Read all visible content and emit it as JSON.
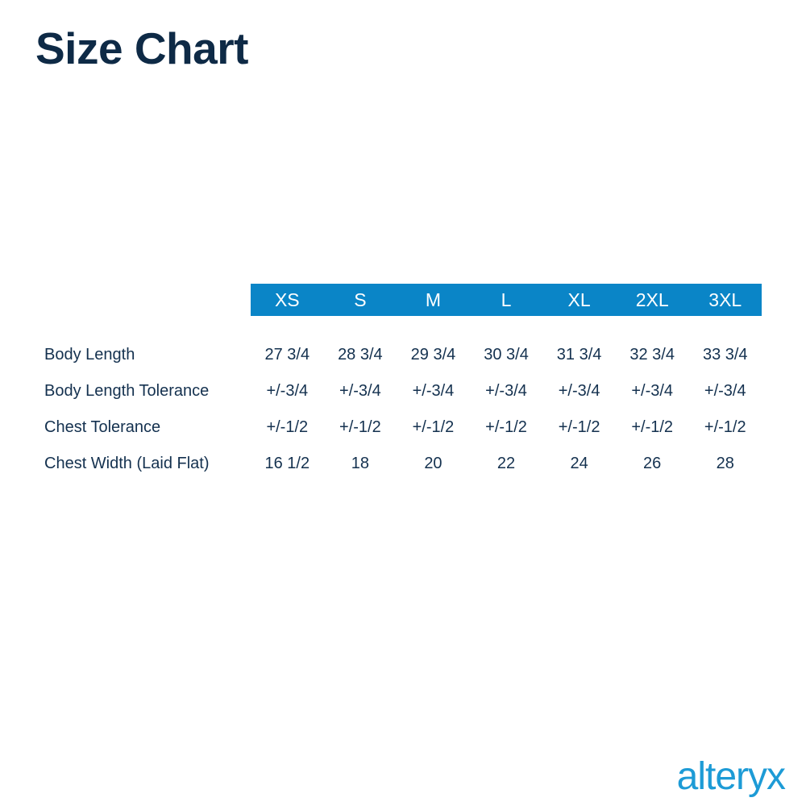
{
  "title": "Size Chart",
  "colors": {
    "title_color": "#0e2a46",
    "text_color": "#14314f",
    "header_bg": "#0a85c7",
    "header_text": "#ffffff",
    "logo_color": "#1d9bd6"
  },
  "footer": {
    "logo_text": "alteryx"
  },
  "chart_data": {
    "type": "table",
    "title": "Size Chart",
    "columns": [
      "XS",
      "S",
      "M",
      "L",
      "XL",
      "2XL",
      "3XL"
    ],
    "rows": [
      {
        "label": "Body Length",
        "values": [
          "27 3/4",
          "28 3/4",
          "29 3/4",
          "30 3/4",
          "31 3/4",
          "32 3/4",
          "33 3/4"
        ]
      },
      {
        "label": "Body Length Tolerance",
        "values": [
          "+/-3/4",
          "+/-3/4",
          "+/-3/4",
          "+/-3/4",
          "+/-3/4",
          "+/-3/4",
          "+/-3/4"
        ]
      },
      {
        "label": "Chest Tolerance",
        "values": [
          "+/-1/2",
          "+/-1/2",
          "+/-1/2",
          "+/-1/2",
          "+/-1/2",
          "+/-1/2",
          "+/-1/2"
        ]
      },
      {
        "label": "Chest Width (Laid Flat)",
        "values": [
          "16 1/2",
          "18",
          "20",
          "22",
          "24",
          "26",
          "28"
        ]
      }
    ],
    "layout": {
      "header_position": "top",
      "header_style": "solid-blue-bar",
      "grid": false
    }
  }
}
